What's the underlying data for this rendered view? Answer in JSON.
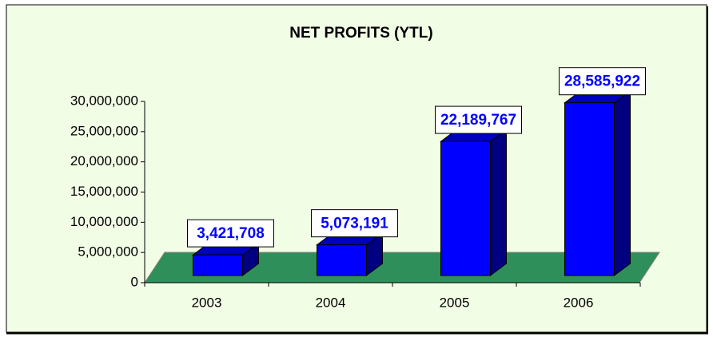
{
  "chart_data": {
    "type": "bar3d",
    "title": "NET PROFITS (YTL)",
    "categories": [
      "2003",
      "2004",
      "2005",
      "2006"
    ],
    "values": [
      3421708,
      5073191,
      22189767,
      28585922
    ],
    "value_labels": [
      "3,421,708",
      "5,073,191",
      "22,189,767",
      "28,585,922"
    ],
    "color": "#0000ff",
    "ylim": [
      0,
      30000000
    ],
    "yticks": [
      {
        "value": 0,
        "label": "0"
      },
      {
        "value": 5000000,
        "label": "5,000,000"
      },
      {
        "value": 10000000,
        "label": "10,000,000"
      },
      {
        "value": 15000000,
        "label": "15,000,000"
      },
      {
        "value": 20000000,
        "label": "20,000,000"
      },
      {
        "value": 25000000,
        "label": "25,000,000"
      },
      {
        "value": 30000000,
        "label": "30,000,000"
      }
    ]
  }
}
